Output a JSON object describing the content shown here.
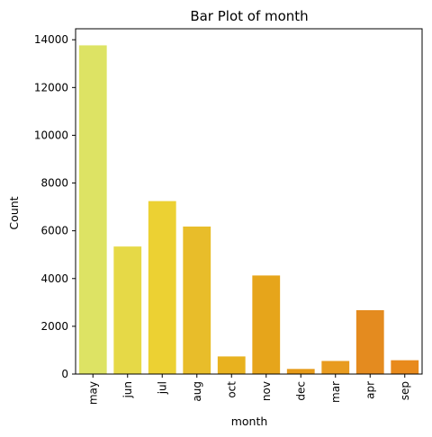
{
  "chart_data": {
    "type": "bar",
    "title": "Bar Plot of month",
    "xlabel": "month",
    "ylabel": "Count",
    "categories": [
      "may",
      "jun",
      "jul",
      "aug",
      "oct",
      "nov",
      "dec",
      "mar",
      "apr",
      "sep"
    ],
    "values": [
      13766,
      5341,
      7243,
      6178,
      738,
      4128,
      214,
      548,
      2676,
      579
    ],
    "colors": [
      "#dde364",
      "#e6d947",
      "#ecd133",
      "#e8bd2a",
      "#e8b21f",
      "#e6a51b",
      "#e69a18",
      "#e89b1f",
      "#e48b1f",
      "#e88a1c"
    ],
    "ylim": [
      0,
      14460
    ],
    "yticks": [
      0,
      2000,
      4000,
      6000,
      8000,
      10000,
      12000,
      14000
    ],
    "ytick_labels": [
      "0",
      "2000",
      "4000",
      "6000",
      "8000",
      "10000",
      "12000",
      "14000"
    ],
    "grid": false,
    "legend": "none"
  }
}
